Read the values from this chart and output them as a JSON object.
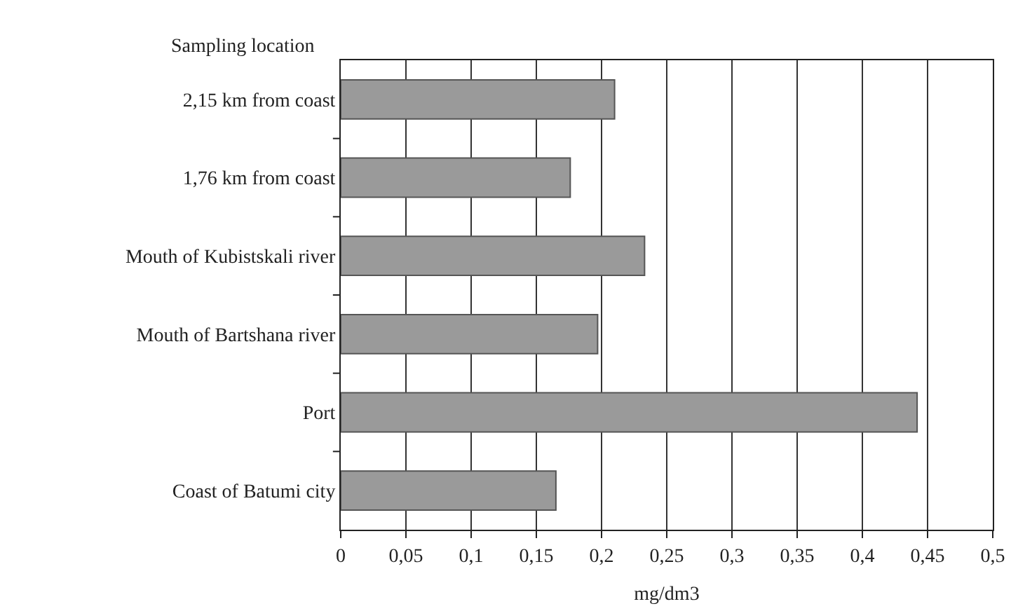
{
  "chart_data": {
    "type": "bar",
    "orientation": "horizontal",
    "ylabel": "Sampling location",
    "xlabel": "mg/dm3",
    "categories": [
      "2,15 km from coast",
      "1,76 km from coast",
      "Mouth of Kubistskali river",
      "Mouth of Bartshana river",
      "Port",
      "Coast of Batumi city"
    ],
    "values": [
      0.21,
      0.176,
      0.233,
      0.197,
      0.442,
      0.165
    ],
    "color": "#9a9a9a",
    "xlim": [
      0,
      0.5
    ],
    "xticks": [
      {
        "value": 0,
        "label": "0"
      },
      {
        "value": 0.05,
        "label": "0,05"
      },
      {
        "value": 0.1,
        "label": "0,1"
      },
      {
        "value": 0.15,
        "label": "0,15"
      },
      {
        "value": 0.2,
        "label": "0,2"
      },
      {
        "value": 0.25,
        "label": "0,25"
      },
      {
        "value": 0.3,
        "label": "0,3"
      },
      {
        "value": 0.35,
        "label": "0,35"
      },
      {
        "value": 0.4,
        "label": "0,4"
      },
      {
        "value": 0.45,
        "label": "0,45"
      },
      {
        "value": 0.5,
        "label": "0,5"
      }
    ],
    "grid": "x",
    "legend": false
  }
}
